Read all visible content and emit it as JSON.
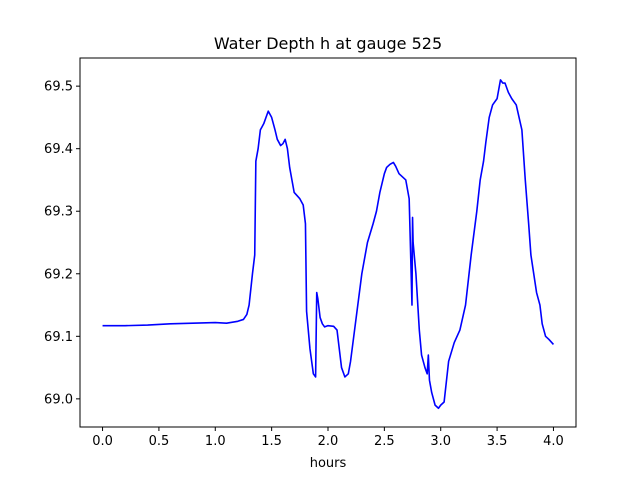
{
  "chart_data": {
    "type": "line",
    "title": "Water Depth h at gauge 525",
    "xlabel": "hours",
    "ylabel": "",
    "xlim": [
      -0.2,
      4.2
    ],
    "ylim": [
      68.955,
      69.545
    ],
    "xticks": [
      0.0,
      0.5,
      1.0,
      1.5,
      2.0,
      2.5,
      3.0,
      3.5,
      4.0
    ],
    "xtick_labels": [
      "0.0",
      "0.5",
      "1.0",
      "1.5",
      "2.0",
      "2.5",
      "3.0",
      "3.5",
      "4.0"
    ],
    "yticks": [
      69.0,
      69.1,
      69.2,
      69.3,
      69.4,
      69.5
    ],
    "ytick_labels": [
      "69.0",
      "69.1",
      "69.2",
      "69.3",
      "69.4",
      "69.5"
    ],
    "grid": false,
    "series": [
      {
        "color": "#0000ff",
        "x": [
          0.0,
          0.2,
          0.4,
          0.6,
          0.8,
          1.0,
          1.1,
          1.2,
          1.25,
          1.28,
          1.3,
          1.33,
          1.35,
          1.36,
          1.38,
          1.4,
          1.43,
          1.47,
          1.5,
          1.53,
          1.55,
          1.58,
          1.6,
          1.62,
          1.64,
          1.66,
          1.68,
          1.7,
          1.75,
          1.78,
          1.8,
          1.81,
          1.82,
          1.84,
          1.87,
          1.89,
          1.9,
          1.91,
          1.93,
          1.95,
          1.97,
          2.0,
          2.05,
          2.08,
          2.1,
          2.12,
          2.15,
          2.18,
          2.2,
          2.25,
          2.3,
          2.35,
          2.4,
          2.43,
          2.46,
          2.5,
          2.52,
          2.55,
          2.58,
          2.6,
          2.63,
          2.66,
          2.69,
          2.72,
          2.745,
          2.75,
          2.755,
          2.765,
          2.78,
          2.8,
          2.81,
          2.83,
          2.86,
          2.88,
          2.89,
          2.9,
          2.92,
          2.95,
          2.98,
          3.0,
          3.03,
          3.07,
          3.12,
          3.17,
          3.22,
          3.27,
          3.32,
          3.35,
          3.38,
          3.4,
          3.43,
          3.46,
          3.5,
          3.53,
          3.55,
          3.57,
          3.6,
          3.63,
          3.67,
          3.72,
          3.75,
          3.78,
          3.8,
          3.85,
          3.88,
          3.9,
          3.93,
          3.96,
          4.0
        ],
        "y": [
          69.117,
          69.117,
          69.118,
          69.12,
          69.121,
          69.122,
          69.121,
          69.124,
          69.127,
          69.135,
          69.15,
          69.2,
          69.23,
          69.38,
          69.4,
          69.43,
          69.44,
          69.46,
          69.45,
          69.43,
          69.415,
          69.405,
          69.408,
          69.415,
          69.4,
          69.37,
          69.35,
          69.33,
          69.32,
          69.31,
          69.28,
          69.14,
          69.12,
          69.08,
          69.04,
          69.035,
          69.17,
          69.16,
          69.13,
          69.12,
          69.115,
          69.117,
          69.116,
          69.11,
          69.08,
          69.05,
          69.035,
          69.04,
          69.06,
          69.13,
          69.2,
          69.25,
          69.28,
          69.3,
          69.33,
          69.36,
          69.37,
          69.375,
          69.378,
          69.372,
          69.36,
          69.355,
          69.35,
          69.32,
          69.15,
          69.29,
          69.25,
          69.23,
          69.2,
          69.14,
          69.11,
          69.07,
          69.05,
          69.04,
          69.07,
          69.03,
          69.01,
          68.99,
          68.985,
          68.99,
          68.995,
          69.06,
          69.09,
          69.11,
          69.15,
          69.23,
          69.3,
          69.35,
          69.38,
          69.41,
          69.45,
          69.47,
          69.48,
          69.51,
          69.505,
          69.505,
          69.49,
          69.48,
          69.47,
          69.43,
          69.35,
          69.28,
          69.23,
          69.17,
          69.15,
          69.12,
          69.1,
          69.095,
          69.087
        ]
      }
    ]
  }
}
